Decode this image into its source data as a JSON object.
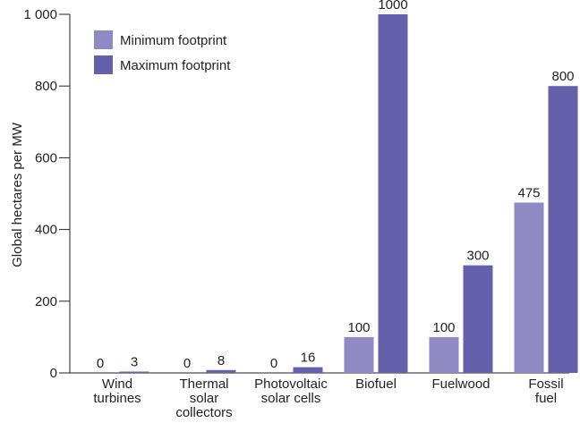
{
  "chart_data": {
    "type": "bar",
    "categories": [
      [
        "Wind",
        "turbines"
      ],
      [
        "Thermal",
        "solar",
        "collectors"
      ],
      [
        "Photovoltaic",
        "solar cells"
      ],
      [
        "Biofuel"
      ],
      [
        "Fuelwood"
      ],
      [
        "Fossil",
        "fuel"
      ]
    ],
    "series": [
      {
        "name": "Minimum footprint",
        "color": "#8f8ac4",
        "values": [
          0,
          0,
          0,
          100,
          100,
          475
        ],
        "labels": [
          "0",
          "0",
          "0",
          "100",
          "100",
          "475"
        ]
      },
      {
        "name": "Maximum footprint",
        "color": "#6560ab",
        "values": [
          3,
          8,
          16,
          1000,
          300,
          800
        ],
        "labels": [
          "3",
          "8",
          "16",
          "1000",
          "300",
          "800"
        ]
      }
    ],
    "ylabel": "Global hectares per MW",
    "ylim": [
      0,
      1000
    ],
    "yticks": [
      0,
      200,
      400,
      600,
      800,
      1000
    ],
    "ytick_labels": [
      "0",
      "200",
      "400",
      "600",
      "800",
      "1 000"
    ],
    "legend_position": "top-left",
    "grid": false
  }
}
